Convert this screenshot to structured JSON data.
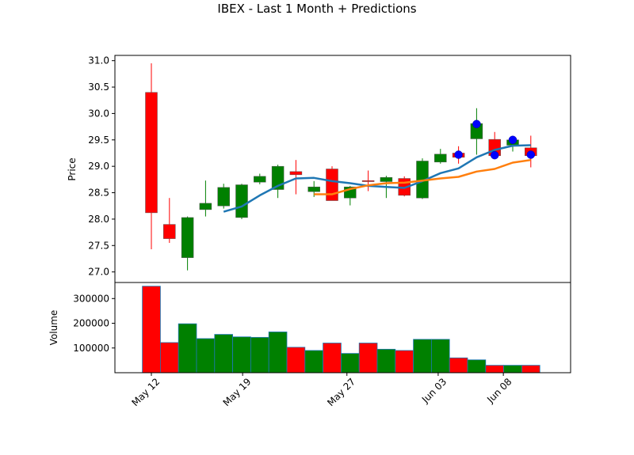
{
  "chart_data": [
    {
      "type": "candlestick",
      "title": "IBEX - Last 1 Month + Predictions",
      "ylabel": "Price",
      "ylim": [
        26.8,
        31.1
      ],
      "y_ticks": [
        "27.0",
        "27.5",
        "28.0",
        "28.5",
        "29.0",
        "29.5",
        "30.0",
        "30.5",
        "31.0"
      ],
      "colors": {
        "up": "#008000",
        "down": "#ff0000",
        "ma_short": "#1f77b4",
        "ma_long": "#ff7f0e",
        "prediction": "#0000ff"
      },
      "candles": [
        {
          "date": "2025-05-12",
          "open": 30.4,
          "high": 30.95,
          "low": 27.43,
          "close": 28.12
        },
        {
          "date": "2025-05-13",
          "open": 27.9,
          "high": 28.4,
          "low": 27.55,
          "close": 27.63
        },
        {
          "date": "2025-05-14",
          "open": 27.27,
          "high": 28.05,
          "low": 27.03,
          "close": 28.03
        },
        {
          "date": "2025-05-15",
          "open": 28.18,
          "high": 28.73,
          "low": 28.05,
          "close": 28.3
        },
        {
          "date": "2025-05-16",
          "open": 28.25,
          "high": 28.67,
          "low": 28.2,
          "close": 28.6
        },
        {
          "date": "2025-05-19",
          "open": 28.03,
          "high": 28.67,
          "low": 28.0,
          "close": 28.65
        },
        {
          "date": "2025-05-20",
          "open": 28.7,
          "high": 28.86,
          "low": 28.66,
          "close": 28.81
        },
        {
          "date": "2025-05-21",
          "open": 28.56,
          "high": 29.03,
          "low": 28.4,
          "close": 29.0
        },
        {
          "date": "2025-05-22",
          "open": 28.9,
          "high": 29.12,
          "low": 28.47,
          "close": 28.84
        },
        {
          "date": "2025-05-23",
          "open": 28.52,
          "high": 28.72,
          "low": 28.42,
          "close": 28.61
        },
        {
          "date": "2025-05-26",
          "open": 28.95,
          "high": 29.0,
          "low": 28.35,
          "close": 28.35
        },
        {
          "date": "2025-05-27",
          "open": 28.4,
          "high": 28.63,
          "low": 28.26,
          "close": 28.61
        },
        {
          "date": "2025-05-28",
          "open": 28.73,
          "high": 28.92,
          "low": 28.53,
          "close": 28.71
        },
        {
          "date": "2025-05-29",
          "open": 28.71,
          "high": 28.82,
          "low": 28.4,
          "close": 28.79
        },
        {
          "date": "2025-05-30",
          "open": 28.77,
          "high": 28.81,
          "low": 28.43,
          "close": 28.45
        },
        {
          "date": "2025-06-02",
          "open": 28.4,
          "high": 29.15,
          "low": 28.38,
          "close": 29.1
        },
        {
          "date": "2025-06-03",
          "open": 29.08,
          "high": 29.33,
          "low": 29.05,
          "close": 29.23
        },
        {
          "date": "2025-06-04",
          "open": 29.25,
          "high": 29.38,
          "low": 29.05,
          "close": 29.17
        },
        {
          "date": "2025-06-05",
          "open": 29.52,
          "high": 30.1,
          "low": 29.22,
          "close": 29.81
        },
        {
          "date": "2025-06-06",
          "open": 29.51,
          "high": 29.65,
          "low": 29.15,
          "close": 29.2
        },
        {
          "date": "2025-06-09",
          "open": 29.4,
          "high": 29.55,
          "low": 29.28,
          "close": 29.5
        },
        {
          "date": "2025-06-10",
          "open": 29.35,
          "high": 29.58,
          "low": 28.98,
          "close": 29.2
        }
      ],
      "ma_short": [
        null,
        null,
        null,
        null,
        28.14,
        28.24,
        28.45,
        28.63,
        28.77,
        28.78,
        28.72,
        28.68,
        28.63,
        28.61,
        28.59,
        28.72,
        28.87,
        28.96,
        29.17,
        29.31,
        29.39,
        29.4
      ],
      "ma_long": [
        null,
        null,
        null,
        null,
        null,
        null,
        null,
        null,
        null,
        28.47,
        28.47,
        28.57,
        28.64,
        28.68,
        28.69,
        28.73,
        28.77,
        28.8,
        28.9,
        28.95,
        29.07,
        29.12
      ],
      "predictions": [
        {
          "date": "2025-06-04",
          "value": 29.22
        },
        {
          "date": "2025-06-05",
          "value": 29.8
        },
        {
          "date": "2025-06-06",
          "value": 29.21
        },
        {
          "date": "2025-06-09",
          "value": 29.5
        },
        {
          "date": "2025-06-10",
          "value": 29.22
        }
      ],
      "x_ticks": [
        {
          "label": "May 12",
          "date": "2025-05-12"
        },
        {
          "label": "May 19",
          "date": "2025-05-19"
        },
        {
          "label": "May 27",
          "date": "2025-05-27"
        },
        {
          "label": "Jun 03",
          "date": "2025-06-03"
        },
        {
          "label": "Jun 08",
          "date": "2025-06-08"
        }
      ]
    },
    {
      "type": "bar",
      "ylabel": "Volume",
      "ylim": [
        0,
        365000
      ],
      "y_ticks": [
        "100000",
        "200000",
        "300000"
      ],
      "y_tick_values": [
        100000,
        200000,
        300000
      ],
      "volumes": [
        350000,
        122000,
        198000,
        138000,
        155000,
        145000,
        143000,
        165000,
        103000,
        90000,
        120000,
        78000,
        120000,
        95000,
        90000,
        135000,
        135000,
        60000,
        52000,
        30000,
        30000,
        30000
      ],
      "volume_colors": [
        "red",
        "red",
        "green",
        "green",
        "green",
        "green",
        "green",
        "green",
        "red",
        "green",
        "red",
        "green",
        "red",
        "green",
        "red",
        "green",
        "green",
        "red",
        "green",
        "red",
        "green",
        "red"
      ]
    }
  ]
}
